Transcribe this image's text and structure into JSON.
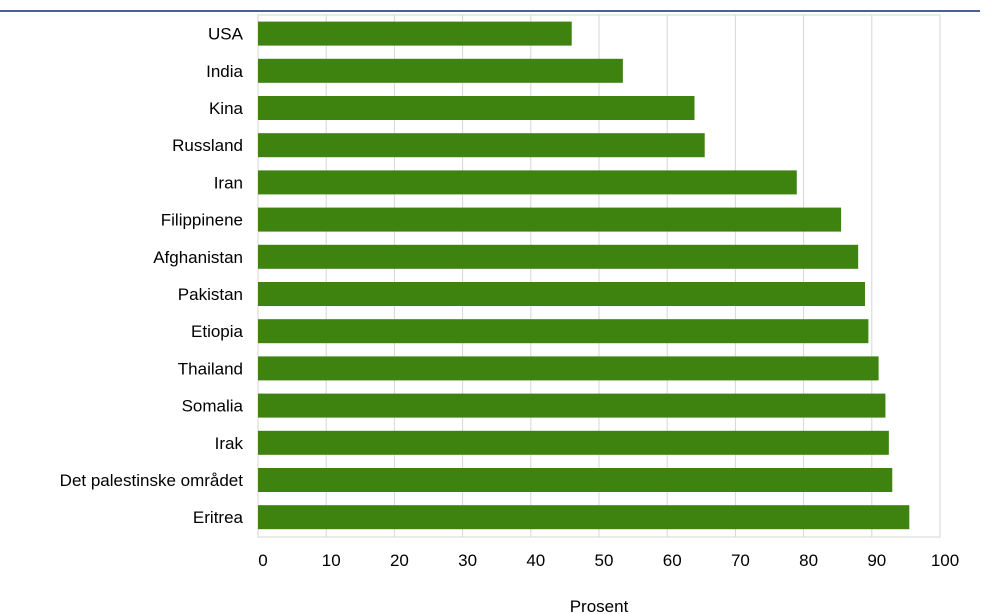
{
  "colors": {
    "bar": "#3e8210",
    "grid": "#d6d6d6",
    "rule": "#4a6291"
  },
  "chart_data": {
    "type": "bar",
    "orientation": "horizontal",
    "categories": [
      "USA",
      "India",
      "Kina",
      "Russland",
      "Iran",
      "Filippinene",
      "Afghanistan",
      "Pakistan",
      "Etiopia",
      "Thailand",
      "Somalia",
      "Irak",
      "Det palestinske området",
      "Eritrea"
    ],
    "values": [
      46,
      53.5,
      64,
      65.5,
      79,
      85.5,
      88,
      89,
      89.5,
      91,
      92,
      92.5,
      93,
      95.5
    ],
    "xlabel": "Prosent",
    "ylabel": "",
    "xlim": [
      0,
      100
    ],
    "xticks": [
      0,
      10,
      20,
      30,
      40,
      50,
      60,
      70,
      80,
      90,
      100
    ],
    "grid": true
  }
}
